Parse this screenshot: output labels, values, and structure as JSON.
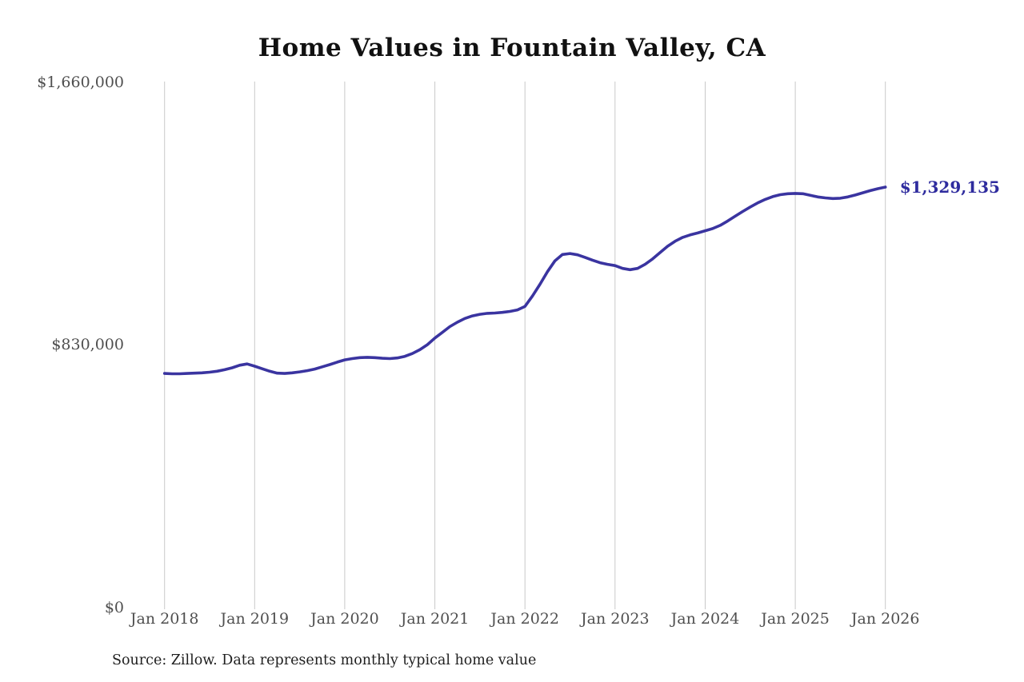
{
  "title": "Home Values in Fountain Valley, CA",
  "source_note": "Source: Zillow. Data represents monthly typical home value",
  "end_label": "$1,329,135",
  "colors": {
    "line": "#3A34A0",
    "end_label": "#2E2B9E",
    "gridline": "#c9c9c9",
    "axis_text": "#4f4f4f",
    "title_text": "#111111",
    "background": "#ffffff"
  },
  "chart_data": {
    "type": "line",
    "title": "Home Values in Fountain Valley, CA",
    "frequency": "monthly",
    "x_start": "Jan 2018",
    "x_end": "Jan 2026",
    "ylim": [
      0,
      1660000
    ],
    "y_ticks": [
      {
        "value": 0,
        "label": "$0"
      },
      {
        "value": 830000,
        "label": "$830,000"
      },
      {
        "value": 1660000,
        "label": "$1,660,000"
      }
    ],
    "x_tick_labels": [
      "Jan 2018",
      "Jan 2019",
      "Jan 2020",
      "Jan 2021",
      "Jan 2022",
      "Jan 2023",
      "Jan 2024",
      "Jan 2025",
      "Jan 2026"
    ],
    "grid": "vertical-only",
    "legend": "none",
    "last_value": 1329135,
    "last_value_label": "$1,329,135",
    "series": [
      {
        "name": "Typical home value",
        "values": [
          740000,
          739000,
          739000,
          740000,
          741000,
          742000,
          744000,
          747000,
          752000,
          758000,
          766000,
          770000,
          763000,
          755000,
          747000,
          741000,
          740000,
          742000,
          745000,
          749000,
          754000,
          761000,
          768000,
          776000,
          783000,
          787000,
          790000,
          791000,
          790000,
          788000,
          787000,
          789000,
          794000,
          803000,
          815000,
          831000,
          852000,
          870000,
          888000,
          902000,
          914000,
          922000,
          927000,
          930000,
          931000,
          933000,
          936000,
          941000,
          952000,
          985000,
          1022000,
          1062000,
          1096000,
          1116000,
          1119000,
          1115000,
          1107000,
          1098000,
          1090000,
          1085000,
          1081000,
          1072000,
          1068000,
          1072000,
          1085000,
          1102000,
          1122000,
          1142000,
          1158000,
          1170000,
          1178000,
          1184000,
          1191000,
          1198000,
          1208000,
          1222000,
          1237000,
          1252000,
          1266000,
          1279000,
          1290000,
          1299000,
          1305000,
          1308000,
          1309000,
          1308000,
          1303000,
          1298000,
          1295000,
          1293000,
          1294000,
          1298000,
          1304000,
          1311000,
          1318000,
          1324000,
          1329135
        ]
      }
    ]
  }
}
